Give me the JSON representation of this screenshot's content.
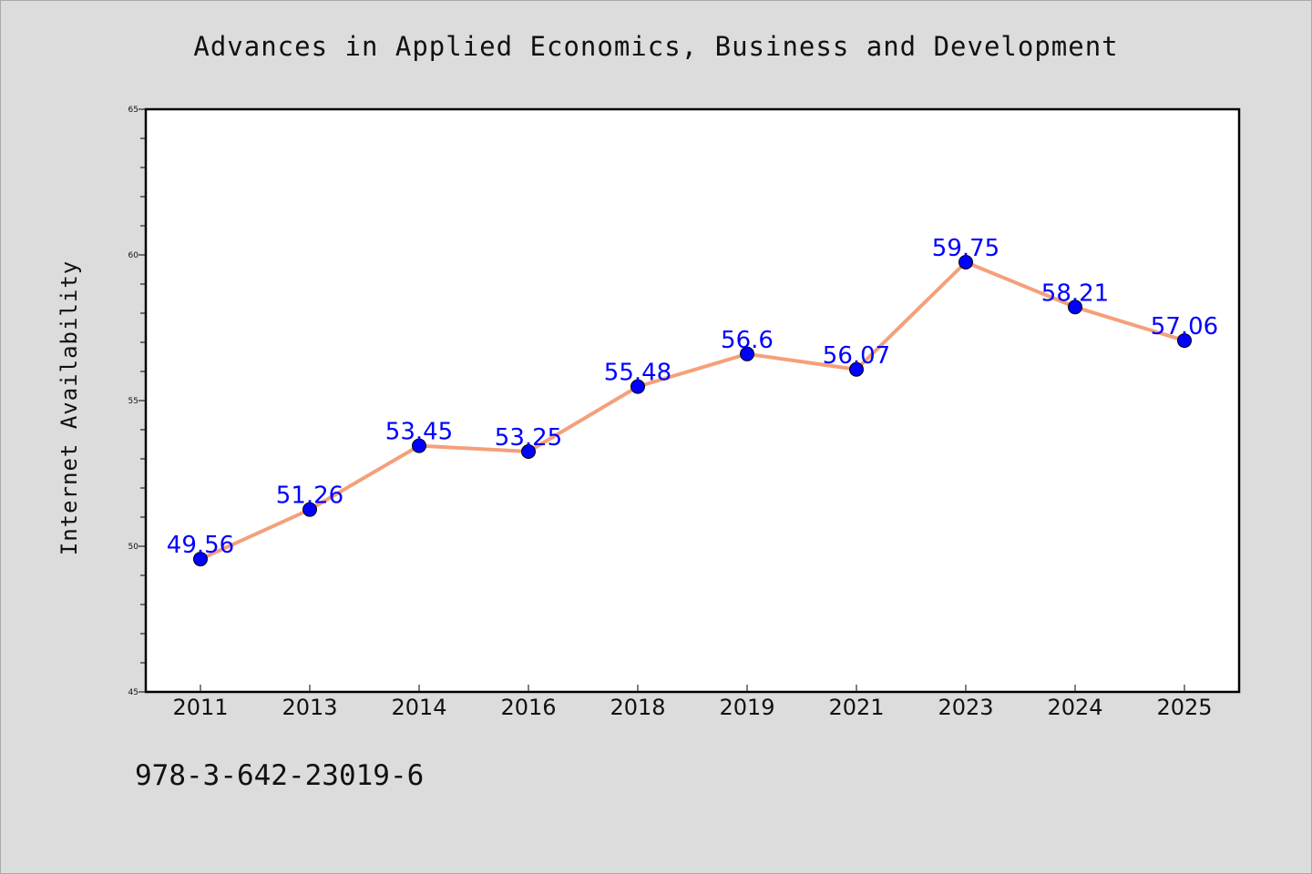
{
  "chart_data": {
    "type": "line",
    "title": "Advances in Applied Economics, Business and Development",
    "xlabel": "",
    "ylabel": "Internet Availability",
    "categories": [
      "2011",
      "2013",
      "2014",
      "2016",
      "2018",
      "2019",
      "2021",
      "2023",
      "2024",
      "2025"
    ],
    "series": [
      {
        "values": [
          49.56,
          51.26,
          53.45,
          53.25,
          55.48,
          56.6,
          56.07,
          59.75,
          58.21,
          57.06
        ]
      }
    ],
    "data_labels": [
      "49.56",
      "51.26",
      "53.45",
      "53.25",
      "55.48",
      "56.6",
      "56.07",
      "59.75",
      "58.21",
      "57.06"
    ],
    "ylim": [
      45,
      65
    ],
    "yticks": [
      "45",
      "50",
      "55",
      "60",
      "65"
    ],
    "grid": false,
    "line_color": "#f4a07a",
    "marker_color": "#0000ff",
    "label_color": "#0000ff",
    "background_color": "#dcdcdc",
    "plot_background": "#ffffff"
  },
  "footer": {
    "isbn": "978-3-642-23019-6"
  }
}
